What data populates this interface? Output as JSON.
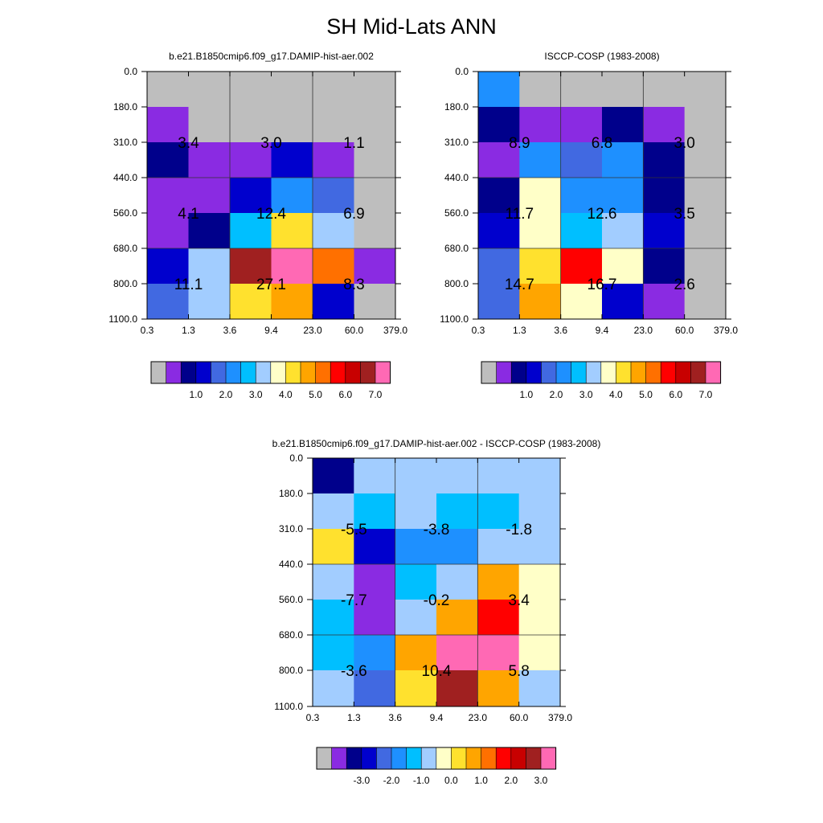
{
  "title": "SH Mid-Lats ANN",
  "palette": [
    "#bebebe",
    "#8a2be2",
    "#00008b",
    "#0000cd",
    "#4169e1",
    "#1e90ff",
    "#00bfff",
    "#a2cdff",
    "#ffffc8",
    "#ffe12e",
    "#ffa500",
    "#ff7000",
    "#ff0000",
    "#c80000",
    "#a02020",
    "#ff69b4"
  ],
  "chart_data": [
    {
      "type": "heatmap",
      "title": "b.e21.B1850cmip6.f09_g17.DAMIP-hist-aer.002",
      "x_ticks": [
        "0.3",
        "1.3",
        "3.6",
        "9.4",
        "23.0",
        "60.0",
        "379.0"
      ],
      "y_ticks": [
        "0.0",
        "180.0",
        "310.0",
        "440.0",
        "560.0",
        "680.0",
        "800.0",
        "1100.0"
      ],
      "cells": [
        [
          0,
          0,
          0,
          0,
          0,
          0
        ],
        [
          1,
          0,
          0,
          0,
          0,
          0
        ],
        [
          2,
          1,
          1,
          3,
          1,
          0
        ],
        [
          1,
          1,
          3,
          5,
          4,
          0
        ],
        [
          1,
          2,
          6,
          9,
          7,
          0
        ],
        [
          3,
          7,
          14,
          15,
          11,
          1
        ],
        [
          4,
          7,
          9,
          10,
          3,
          0
        ]
      ],
      "cell_labels": [
        {
          "row": 1,
          "col": 0,
          "text": "3.4"
        },
        {
          "row": 1,
          "col": 2,
          "text": "3.0"
        },
        {
          "row": 1,
          "col": 4,
          "text": "1.1"
        },
        {
          "row": 3,
          "col": 0,
          "text": "4.1"
        },
        {
          "row": 3,
          "col": 2,
          "text": "12.4"
        },
        {
          "row": 3,
          "col": 4,
          "text": "6.9"
        },
        {
          "row": 5,
          "col": 0,
          "text": "11.1"
        },
        {
          "row": 5,
          "col": 2,
          "text": "27.1"
        },
        {
          "row": 5,
          "col": 4,
          "text": "8.3"
        }
      ],
      "colorbar_labels": [
        "1.0",
        "2.0",
        "3.0",
        "4.0",
        "5.0",
        "6.0",
        "7.0"
      ]
    },
    {
      "type": "heatmap",
      "title": "ISCCP-COSP (1983-2008)",
      "x_ticks": [
        "0.3",
        "1.3",
        "3.6",
        "9.4",
        "23.0",
        "60.0",
        "379.0"
      ],
      "y_ticks": [
        "0.0",
        "180.0",
        "310.0",
        "440.0",
        "560.0",
        "680.0",
        "800.0",
        "1100.0"
      ],
      "cells": [
        [
          5,
          0,
          0,
          0,
          0,
          0
        ],
        [
          2,
          1,
          1,
          2,
          1,
          0
        ],
        [
          1,
          5,
          4,
          5,
          2,
          0
        ],
        [
          2,
          8,
          5,
          5,
          2,
          0
        ],
        [
          3,
          8,
          6,
          7,
          3,
          0
        ],
        [
          4,
          9,
          12,
          8,
          2,
          0
        ],
        [
          4,
          10,
          8,
          3,
          1,
          0
        ]
      ],
      "cell_labels": [
        {
          "row": 1,
          "col": 0,
          "text": "8.9"
        },
        {
          "row": 1,
          "col": 2,
          "text": "6.8"
        },
        {
          "row": 1,
          "col": 4,
          "text": "3.0"
        },
        {
          "row": 3,
          "col": 0,
          "text": "11.7"
        },
        {
          "row": 3,
          "col": 2,
          "text": "12.6"
        },
        {
          "row": 3,
          "col": 4,
          "text": "3.5"
        },
        {
          "row": 5,
          "col": 0,
          "text": "14.7"
        },
        {
          "row": 5,
          "col": 2,
          "text": "16.7"
        },
        {
          "row": 5,
          "col": 4,
          "text": "2.6"
        }
      ],
      "colorbar_labels": [
        "1.0",
        "2.0",
        "3.0",
        "4.0",
        "5.0",
        "6.0",
        "7.0"
      ]
    },
    {
      "type": "heatmap",
      "title": "b.e21.B1850cmip6.f09_g17.DAMIP-hist-aer.002 - ISCCP-COSP (1983-2008)",
      "x_ticks": [
        "0.3",
        "1.3",
        "3.6",
        "9.4",
        "23.0",
        "60.0",
        "379.0"
      ],
      "y_ticks": [
        "0.0",
        "180.0",
        "310.0",
        "440.0",
        "560.0",
        "680.0",
        "800.0",
        "1100.0"
      ],
      "cells": [
        [
          2,
          7,
          7,
          7,
          7,
          7
        ],
        [
          7,
          6,
          7,
          6,
          6,
          7
        ],
        [
          9,
          3,
          5,
          5,
          7,
          7
        ],
        [
          7,
          1,
          6,
          7,
          10,
          8
        ],
        [
          6,
          1,
          7,
          10,
          12,
          8
        ],
        [
          6,
          5,
          10,
          15,
          15,
          8
        ],
        [
          7,
          4,
          9,
          14,
          10,
          7
        ]
      ],
      "cell_labels": [
        {
          "row": 1,
          "col": 0,
          "text": "-5.5"
        },
        {
          "row": 1,
          "col": 2,
          "text": "-3.8"
        },
        {
          "row": 1,
          "col": 4,
          "text": "-1.8"
        },
        {
          "row": 3,
          "col": 0,
          "text": "-7.7"
        },
        {
          "row": 3,
          "col": 2,
          "text": "-0.2"
        },
        {
          "row": 3,
          "col": 4,
          "text": "3.4"
        },
        {
          "row": 5,
          "col": 0,
          "text": "-3.6"
        },
        {
          "row": 5,
          "col": 2,
          "text": "10.4"
        },
        {
          "row": 5,
          "col": 4,
          "text": "5.8"
        }
      ],
      "colorbar_labels": [
        "-3.0",
        "-2.0",
        "-1.0",
        "0.0",
        "1.0",
        "2.0",
        "3.0"
      ]
    }
  ]
}
